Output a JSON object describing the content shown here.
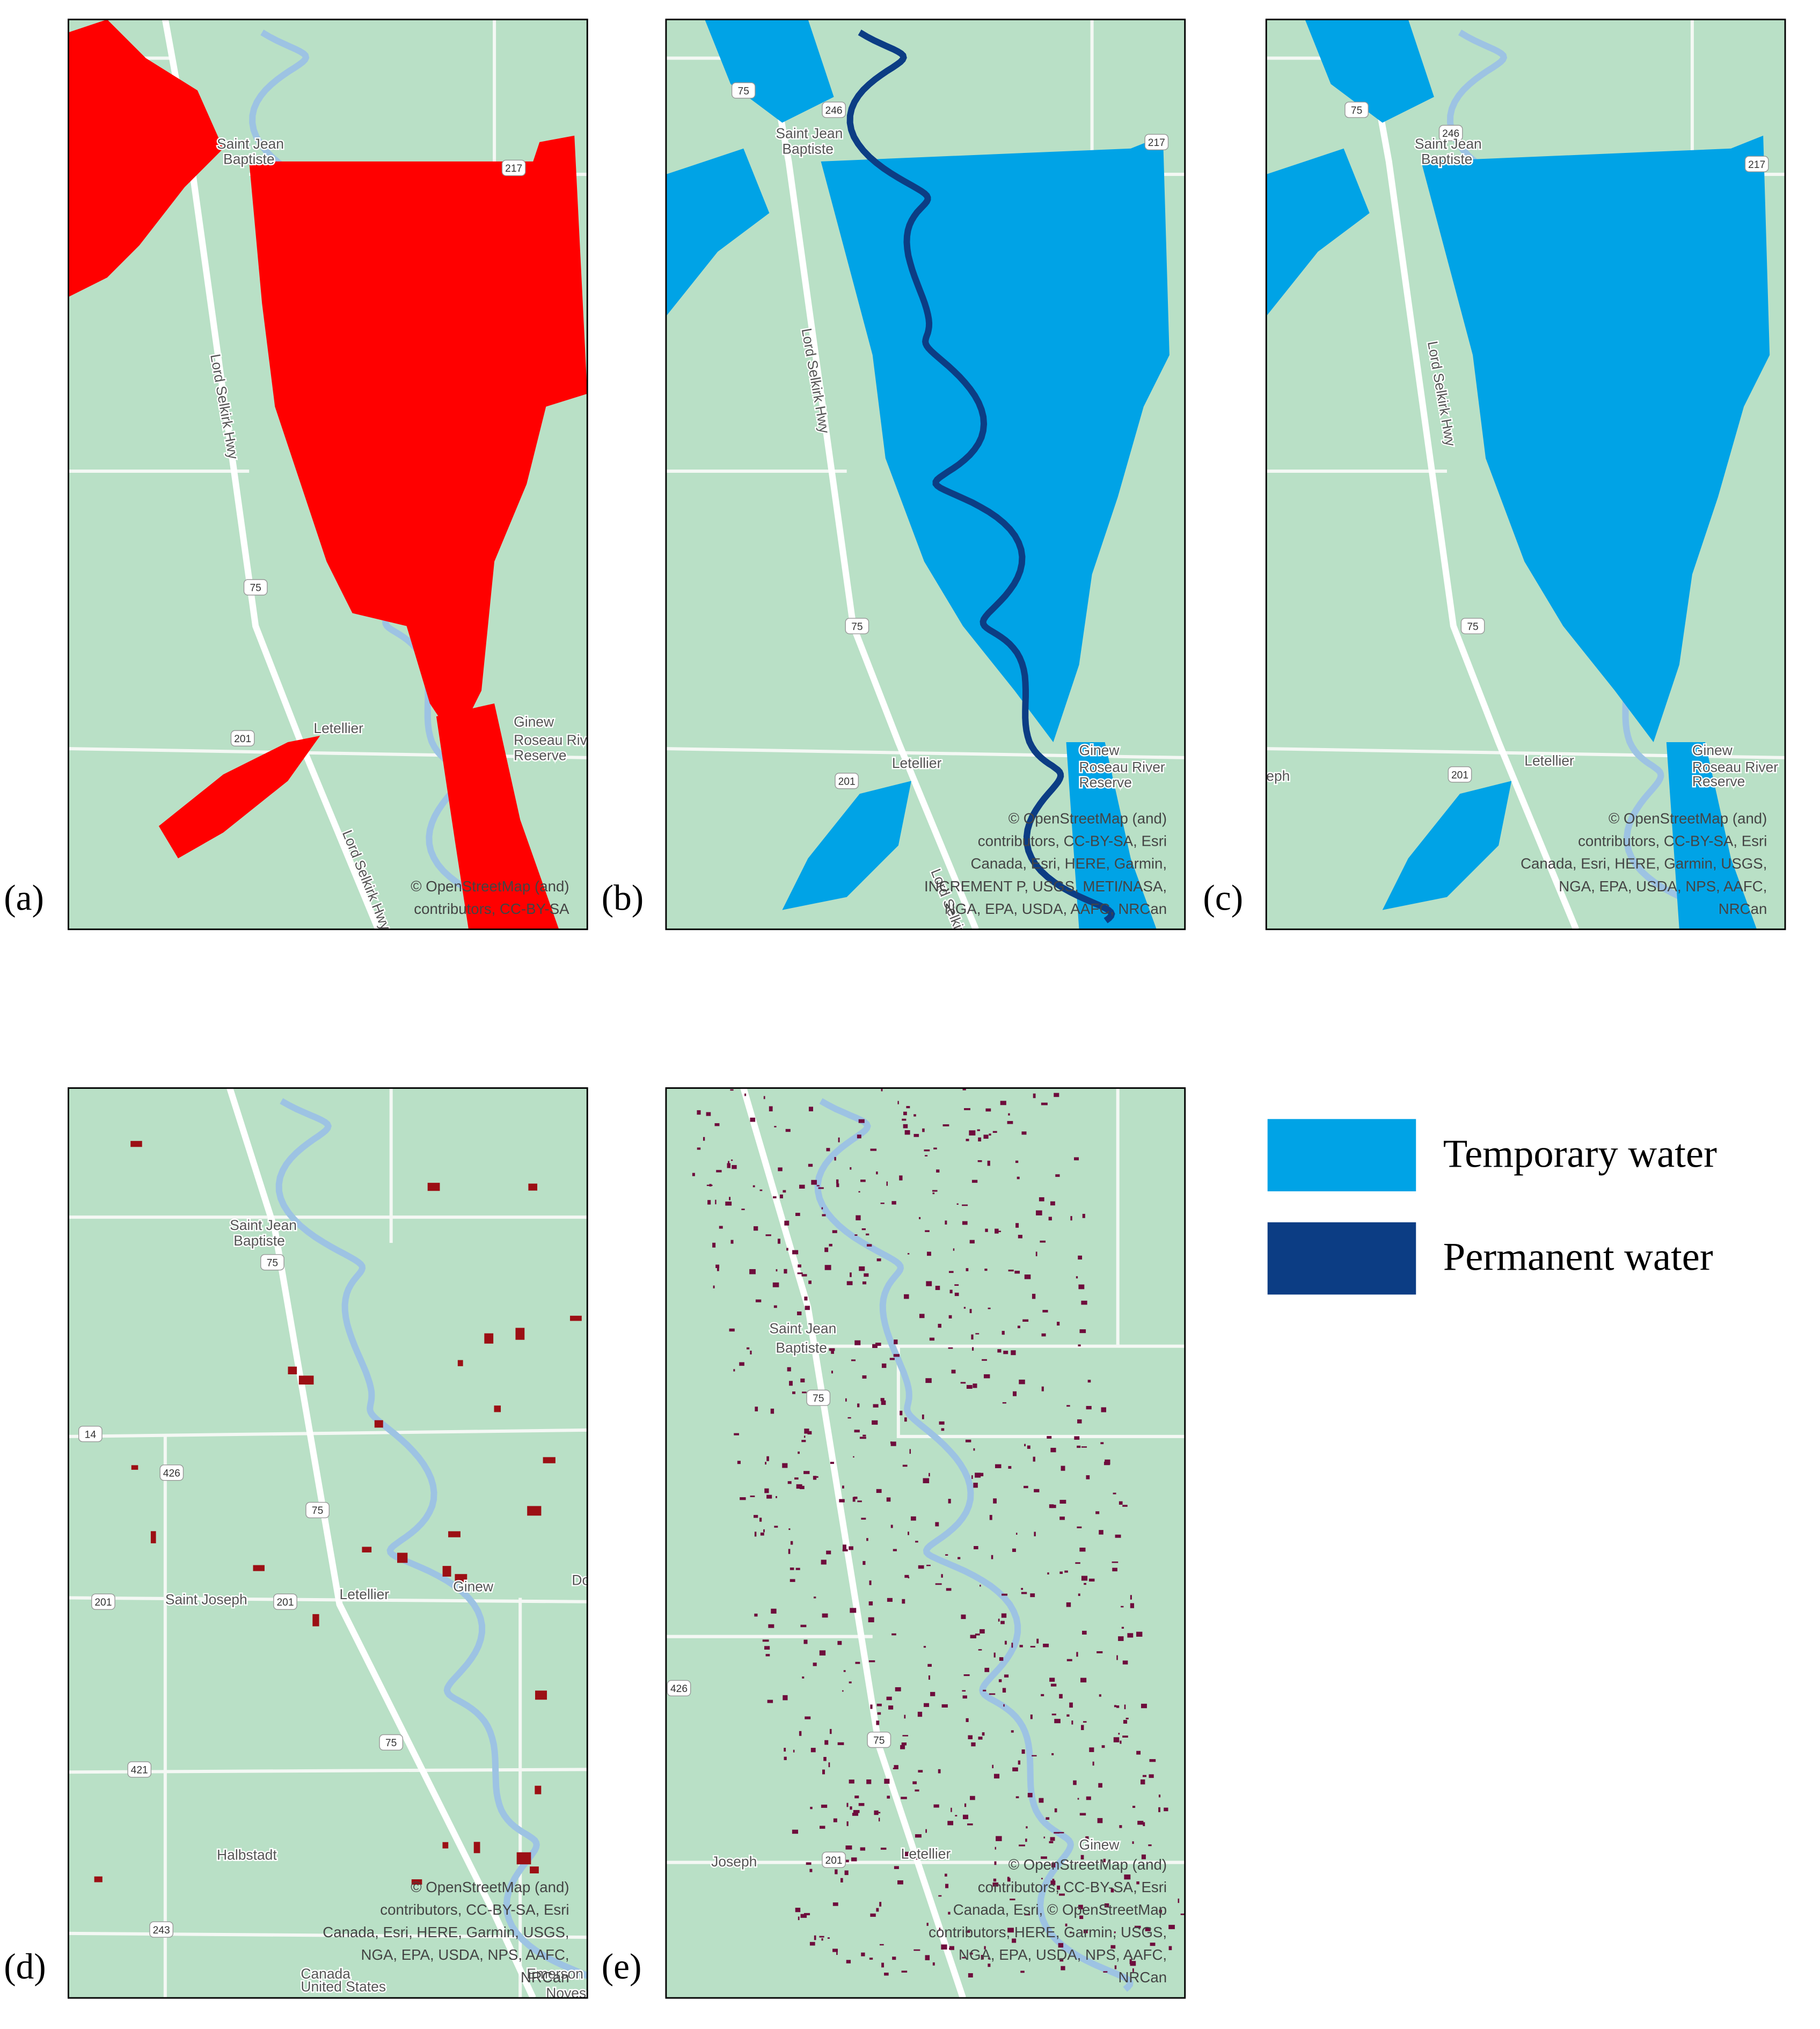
{
  "panels": [
    {
      "label": "(a)",
      "flood_color": "#ff0000",
      "places": [
        {
          "text": "Saint Jean"
        },
        {
          "text": "Baptiste"
        },
        {
          "text": "Lord Selkirk Hwy"
        },
        {
          "text": "Letellier"
        },
        {
          "text": "Ginew"
        },
        {
          "text": "Roseau River"
        },
        {
          "text": "Reserve"
        },
        {
          "text": "Lord Selkirk Hwy"
        }
      ],
      "shields": [
        {
          "text": "217"
        },
        {
          "text": "75"
        },
        {
          "text": "201"
        }
      ],
      "attribution": [
        "© OpenStreetMap (and)",
        "contributors, CC-BY-SA"
      ]
    },
    {
      "label": "(b)",
      "flood_color": "#00a3e6",
      "places": [
        {
          "text": "Saint Jean"
        },
        {
          "text": "Baptiste"
        },
        {
          "text": "Lord Selkirk Hwy"
        },
        {
          "text": "Letellier"
        },
        {
          "text": "Ginew"
        },
        {
          "text": "Roseau River"
        },
        {
          "text": "Reserve"
        },
        {
          "text": "Lord Selkirk Hwy"
        }
      ],
      "shields": [
        {
          "text": "217"
        },
        {
          "text": "75"
        },
        {
          "text": "201"
        },
        {
          "text": "75"
        },
        {
          "text": "246"
        }
      ],
      "attribution": [
        "© OpenStreetMap (and)",
        "contributors, CC-BY-SA, Esri",
        "Canada, Esri, HERE, Garmin,",
        "INCREMENT P, USGS, METI/NASA,",
        "NGA, EPA, USDA, AAFC, NRCan"
      ]
    },
    {
      "label": "(c)",
      "flood_color": "#00a3e6",
      "places": [
        {
          "text": "Saint Jean"
        },
        {
          "text": "Baptiste"
        },
        {
          "text": "Lord Selkirk Hwy"
        },
        {
          "text": "Letellier"
        },
        {
          "text": "Ginew"
        },
        {
          "text": "Roseau River"
        },
        {
          "text": "Reserve"
        },
        {
          "text": "eph"
        }
      ],
      "shields": [
        {
          "text": "217"
        },
        {
          "text": "75"
        },
        {
          "text": "201"
        },
        {
          "text": "75"
        },
        {
          "text": "246"
        }
      ],
      "attribution": [
        "© OpenStreetMap (and)",
        "contributors, CC-BY-SA, Esri",
        "Canada, Esri, HERE, Garmin, USGS,",
        "NGA, EPA, USDA, NPS, AAFC,",
        "NRCan"
      ]
    },
    {
      "label": "(d)",
      "flood_color": "#9c0f14",
      "places": [
        {
          "text": "Saint Jean"
        },
        {
          "text": "Baptiste"
        },
        {
          "text": "Saint Joseph"
        },
        {
          "text": "Letellier"
        },
        {
          "text": "Ginew"
        },
        {
          "text": "Halbstadt"
        },
        {
          "text": "Emerson"
        },
        {
          "text": "Canada"
        },
        {
          "text": "United States"
        },
        {
          "text": "Noyes"
        },
        {
          "text": "Do"
        }
      ],
      "shields": [
        {
          "text": "75"
        },
        {
          "text": "14"
        },
        {
          "text": "426"
        },
        {
          "text": "75"
        },
        {
          "text": "201"
        },
        {
          "text": "201"
        },
        {
          "text": "75"
        },
        {
          "text": "421"
        },
        {
          "text": "243"
        }
      ],
      "attribution": [
        "© OpenStreetMap (and)",
        "contributors, CC-BY-SA, Esri",
        "Canada, Esri, HERE, Garmin, USGS,",
        "NGA, EPA, USDA, NPS, AAFC,",
        "NRCan"
      ]
    },
    {
      "label": "(e)",
      "flood_color": "#6e0c3c",
      "places": [
        {
          "text": "Saint Jean"
        },
        {
          "text": "Baptiste"
        },
        {
          "text": "Joseph"
        },
        {
          "text": "Letellier"
        },
        {
          "text": "Ginew"
        }
      ],
      "shields": [
        {
          "text": "75"
        },
        {
          "text": "426"
        },
        {
          "text": "75"
        },
        {
          "text": "201"
        }
      ],
      "attribution": [
        "© OpenStreetMap (and)",
        "contributors, CC-BY-SA, Esri",
        "Canada, Esri, © OpenStreetMap",
        "contributors, HERE, Garmin, USGS,",
        "NGA, EPA, USDA, NPS, AAFC,",
        "NRCan"
      ]
    }
  ],
  "legend": [
    {
      "label": "Temporary water",
      "color": "#00a3e6"
    },
    {
      "label": "Permanent water",
      "color": "#0c3d84"
    }
  ]
}
